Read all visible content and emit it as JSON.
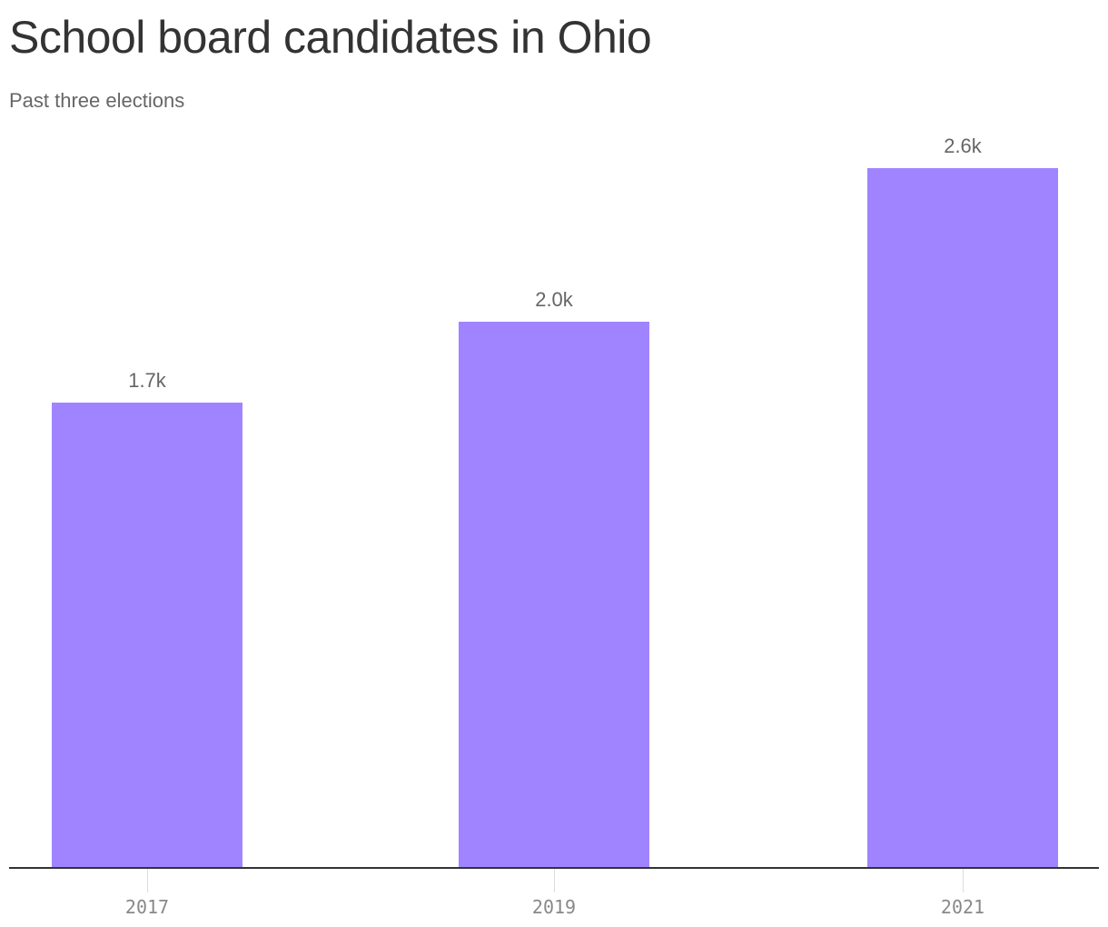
{
  "header": {
    "title": "School board candidates in Ohio",
    "subtitle": "Past three elections"
  },
  "colors": {
    "bar": "#a084ff",
    "axis": "#333333",
    "title": "#333333",
    "label": "#666666",
    "tick_label": "#888888"
  },
  "bars": [
    {
      "category": "2017",
      "label": "1.7k",
      "value": 1730
    },
    {
      "category": "2019",
      "label": "2.0k",
      "value": 2030
    },
    {
      "category": "2021",
      "label": "2.6k",
      "value": 2600
    }
  ],
  "chart_data": {
    "type": "bar",
    "title": "School board candidates in Ohio",
    "subtitle": "Past three elections",
    "categories": [
      "2017",
      "2019",
      "2021"
    ],
    "values": [
      1730,
      2030,
      2600
    ],
    "data_labels": [
      "1.7k",
      "2.0k",
      "2.6k"
    ],
    "xlabel": "",
    "ylabel": "",
    "ylim": [
      0,
      2600
    ],
    "grid": false,
    "legend": null
  }
}
